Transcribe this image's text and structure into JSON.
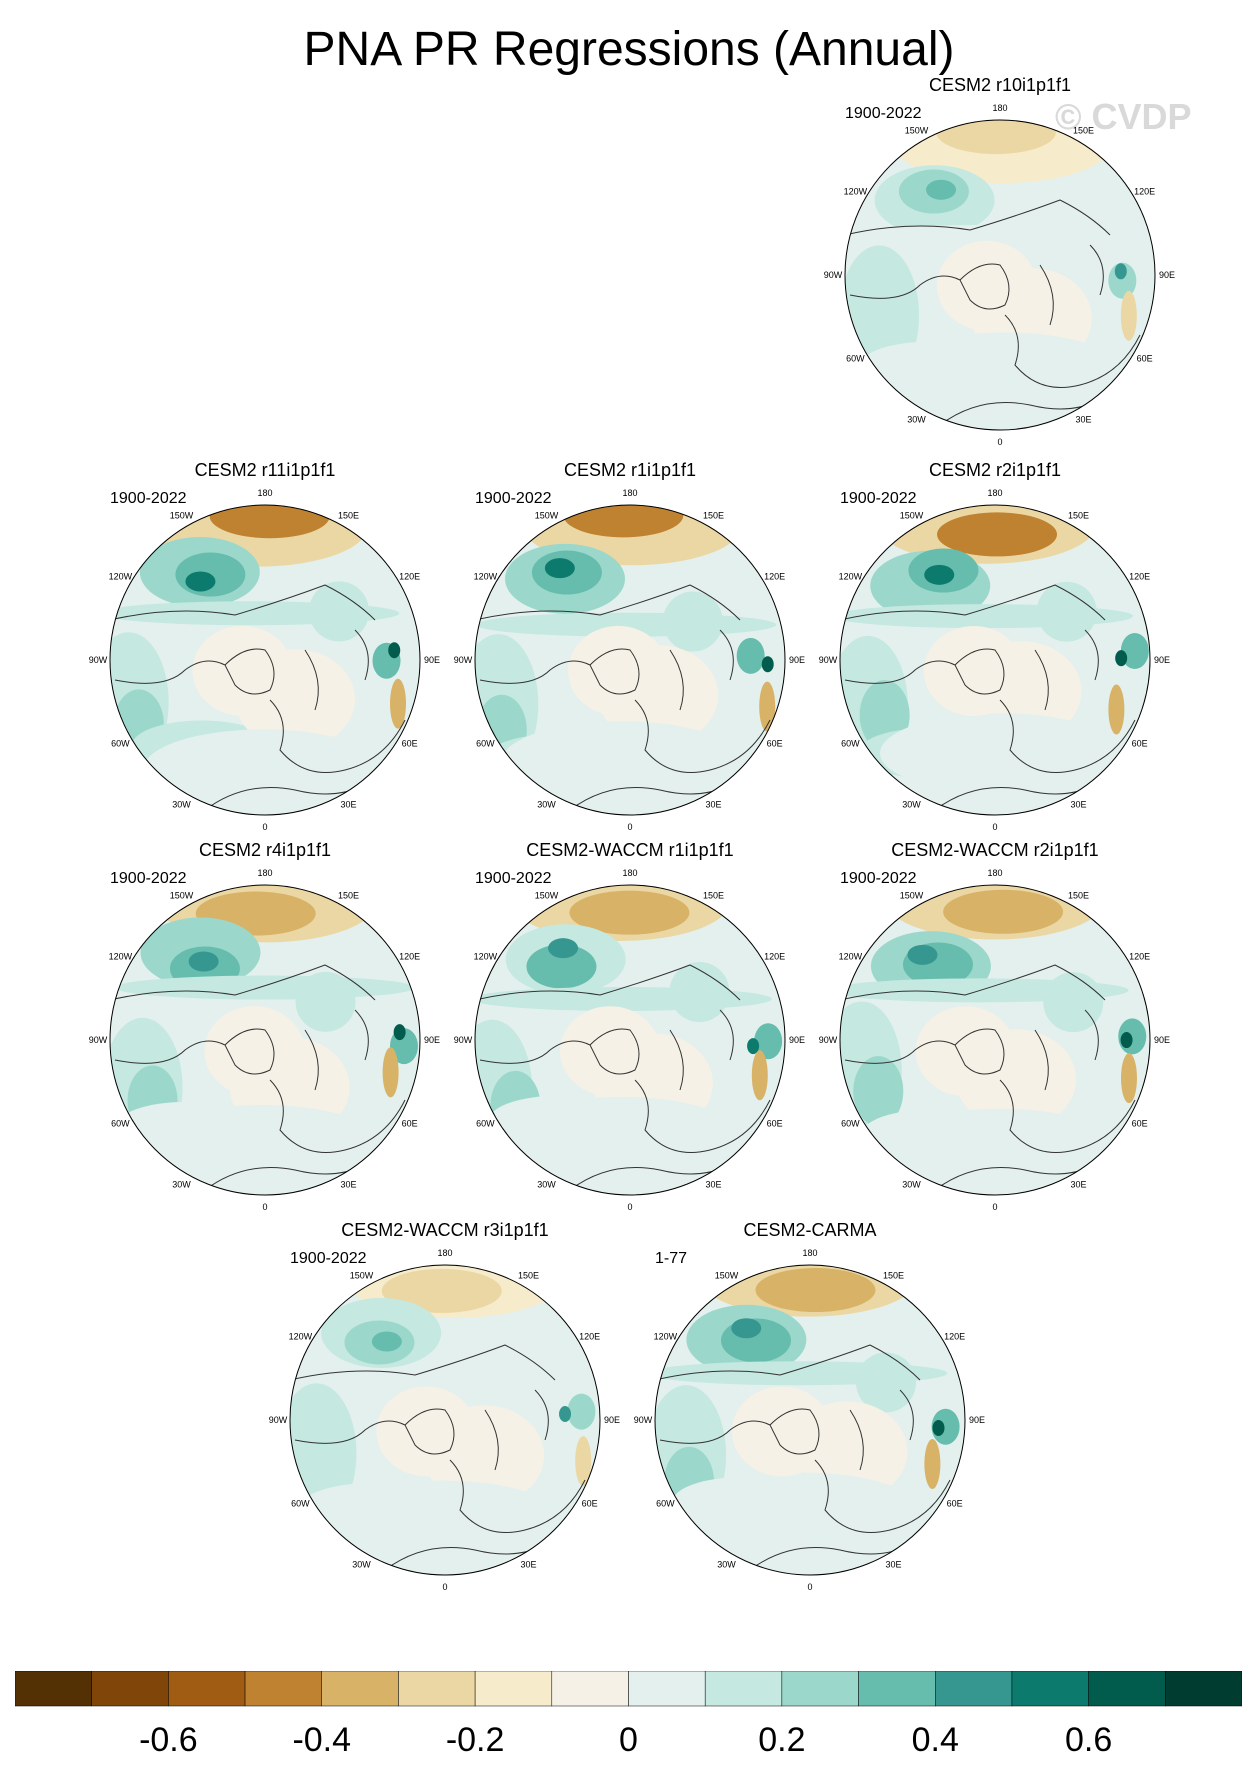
{
  "figure": {
    "title": "PNA PR Regressions (Annual)",
    "watermark": "© CVDP"
  },
  "panels": [
    {
      "title": "CESM2 r10i1p1f1",
      "years": "1900-2022",
      "map_feature_strength": 0.55
    },
    {
      "title": "CESM2 r11i1p1f1",
      "years": "1900-2022",
      "map_feature_strength": 0.85
    },
    {
      "title": "CESM2 r1i1p1f1",
      "years": "1900-2022",
      "map_feature_strength": 0.85
    },
    {
      "title": "CESM2 r2i1p1f1",
      "years": "1900-2022",
      "map_feature_strength": 0.85
    },
    {
      "title": "CESM2 r4i1p1f1",
      "years": "1900-2022",
      "map_feature_strength": 0.8
    },
    {
      "title": "CESM2-WACCM r1i1p1f1",
      "years": "1900-2022",
      "map_feature_strength": 0.75
    },
    {
      "title": "CESM2-WACCM r2i1p1f1",
      "years": "1900-2022",
      "map_feature_strength": 0.8
    },
    {
      "title": "CESM2-WACCM r3i1p1f1",
      "years": "1900-2022",
      "map_feature_strength": 0.55
    },
    {
      "title": "CESM2-CARMA",
      "years": "1-77",
      "map_feature_strength": 0.8
    }
  ],
  "longitude_labels": [
    "180",
    "150E",
    "120E",
    "90E",
    "60E",
    "30E",
    "0",
    "30W",
    "60W",
    "90W",
    "120W",
    "150W"
  ],
  "colorbar": {
    "colors": [
      "#543005",
      "#7f4509",
      "#9f5c12",
      "#be8230",
      "#d8b367",
      "#ebd7a3",
      "#f6ebcb",
      "#f5f1e6",
      "#e3f0ee",
      "#c5e8e1",
      "#9bd8cb",
      "#66bdad",
      "#35978f",
      "#0c7a6c",
      "#015c4d",
      "#003c30"
    ],
    "tick_labels": [
      "-0.6",
      "-0.4",
      "-0.2",
      "0",
      "0.2",
      "0.4",
      "0.6"
    ]
  },
  "palette": {
    "land_outline": "#333333",
    "map_background": "#f5f1e6"
  }
}
